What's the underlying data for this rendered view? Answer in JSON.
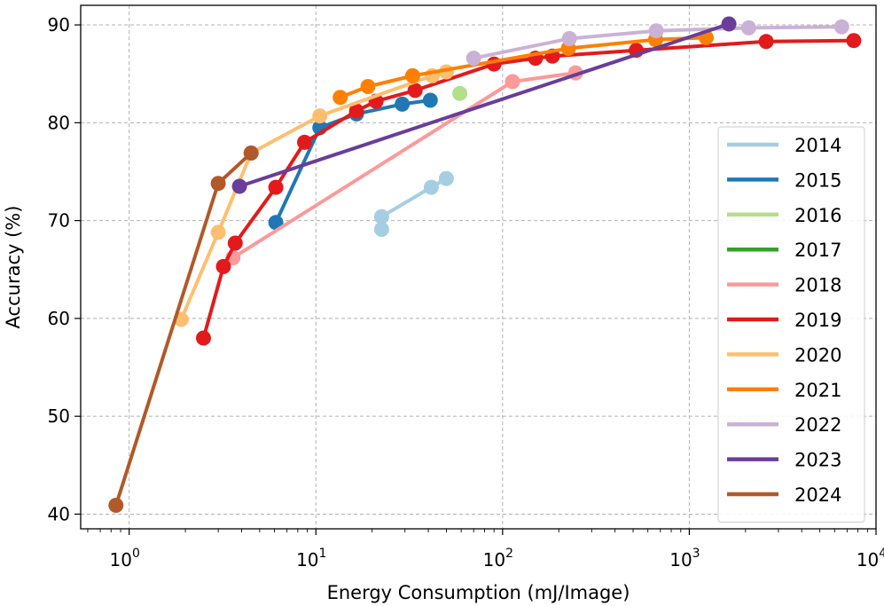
{
  "chart_data": {
    "type": "line",
    "title": "",
    "xlabel": "Energy Consumption (mJ/Image)",
    "ylabel": "Accuracy (%)",
    "xscale": "log",
    "xlim": [
      0.55,
      10000
    ],
    "ylim": [
      38.5,
      92
    ],
    "grid": true,
    "legend_position": "right",
    "x_ticks": [
      {
        "base": "10",
        "exp": "0",
        "value": 1
      },
      {
        "base": "10",
        "exp": "1",
        "value": 10
      },
      {
        "base": "10",
        "exp": "2",
        "value": 100
      },
      {
        "base": "10",
        "exp": "3",
        "value": 1000
      },
      {
        "base": "10",
        "exp": "4",
        "value": 10000
      }
    ],
    "y_ticks": [
      "40",
      "50",
      "60",
      "70",
      "80",
      "90"
    ],
    "series": [
      {
        "name": "2014",
        "color": "#a6cee3",
        "points": [
          [
            22.5,
            69.1
          ],
          [
            22.5,
            70.4
          ],
          [
            41.5,
            73.4
          ],
          [
            50,
            74.3
          ]
        ]
      },
      {
        "name": "2015",
        "color": "#1f78b4",
        "points": [
          [
            6.1,
            69.8
          ],
          [
            10.5,
            79.5
          ],
          [
            16.5,
            80.9
          ],
          [
            29,
            81.9
          ],
          [
            41,
            82.3
          ]
        ]
      },
      {
        "name": "2016",
        "color": "#b2df8a",
        "points": [
          [
            59,
            83.0
          ]
        ]
      },
      {
        "name": "2017",
        "color": "#33a02c",
        "points": []
      },
      {
        "name": "2018",
        "color": "#fb9a99",
        "points": [
          [
            3.6,
            66.2
          ],
          [
            113,
            84.2
          ],
          [
            246,
            85.1
          ]
        ]
      },
      {
        "name": "2019",
        "color": "#e31a1c",
        "points": [
          [
            2.5,
            58.0
          ],
          [
            3.2,
            65.3
          ],
          [
            3.7,
            67.7
          ],
          [
            6.1,
            73.4
          ],
          [
            8.7,
            78.0
          ],
          [
            16.5,
            81.2
          ],
          [
            21,
            82.2
          ],
          [
            34,
            83.3
          ],
          [
            90,
            86.0
          ],
          [
            150,
            86.6
          ],
          [
            185,
            86.8
          ],
          [
            520,
            87.4
          ],
          [
            2580,
            88.3
          ],
          [
            7600,
            88.4
          ]
        ]
      },
      {
        "name": "2020",
        "color": "#fdbf6f",
        "points": [
          [
            1.9,
            59.9
          ],
          [
            3.0,
            68.8
          ],
          [
            4.5,
            76.9
          ],
          [
            10.5,
            80.7
          ],
          [
            42,
            84.8
          ],
          [
            50,
            85.2
          ]
        ]
      },
      {
        "name": "2021",
        "color": "#ff7f00",
        "points": [
          [
            13.5,
            82.6
          ],
          [
            19,
            83.7
          ],
          [
            33,
            84.8
          ],
          [
            225,
            87.6
          ],
          [
            660,
            88.5
          ],
          [
            1230,
            88.7
          ]
        ]
      },
      {
        "name": "2022",
        "color": "#cab2d6",
        "points": [
          [
            70,
            86.6
          ],
          [
            228,
            88.6
          ],
          [
            665,
            89.4
          ],
          [
            2080,
            89.7
          ],
          [
            6550,
            89.8
          ]
        ]
      },
      {
        "name": "2023",
        "color": "#6a3d9a",
        "points": [
          [
            3.9,
            73.5
          ],
          [
            1630,
            90.1
          ]
        ]
      },
      {
        "name": "2024",
        "color": "#b15928",
        "points": [
          [
            0.85,
            40.9
          ],
          [
            3.0,
            73.8
          ],
          [
            4.5,
            76.9
          ]
        ]
      }
    ]
  }
}
